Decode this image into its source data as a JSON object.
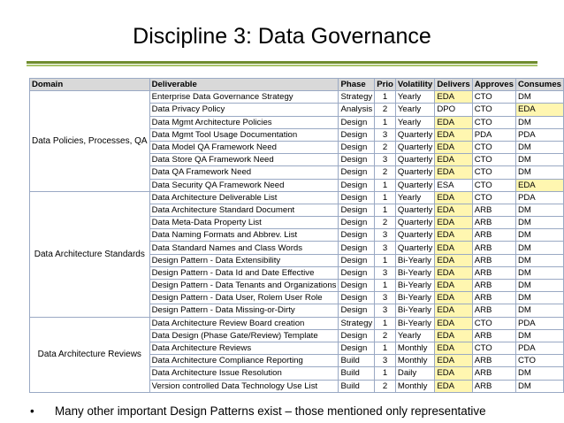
{
  "slide": {
    "title": "Discipline 3: Data Governance",
    "bullet_marker": "•",
    "bullet": "Many other important Design Patterns exist – those mentioned only representative"
  },
  "colors": {
    "rule_dark": "#6f8c2e",
    "rule_light": "#a9c56a",
    "header_bg": "#d9d9d9",
    "highlight": "#fff6b0",
    "grid": "#9aa9c4"
  },
  "table": {
    "headers": [
      "Domain",
      "Deliverable",
      "Phase",
      "Prio",
      "Volatility",
      "Delivers",
      "Approves",
      "Consumes"
    ],
    "groups": [
      {
        "domain": "Data Policies, Processes, QA",
        "rows": [
          {
            "deliverable": "Enterprise Data Governance Strategy",
            "phase": "Strategy",
            "prio": "1",
            "volatility": "Yearly",
            "delivers": "EDA",
            "approves": "CTO",
            "consumes": "DM",
            "hl_delivers": true,
            "hl_consumes": false
          },
          {
            "deliverable": "Data Privacy Policy",
            "phase": "Analysis",
            "prio": "2",
            "volatility": "Yearly",
            "delivers": "DPO",
            "approves": "CTO",
            "consumes": "EDA",
            "hl_delivers": false,
            "hl_consumes": true
          },
          {
            "deliverable": "Data Mgmt Architecture Policies",
            "phase": "Design",
            "prio": "1",
            "volatility": "Yearly",
            "delivers": "EDA",
            "approves": "CTO",
            "consumes": "DM",
            "hl_delivers": true,
            "hl_consumes": false
          },
          {
            "deliverable": "Data Mgmt Tool Usage Documentation",
            "phase": "Design",
            "prio": "3",
            "volatility": "Quarterly",
            "delivers": "EDA",
            "approves": "PDA",
            "consumes": "PDA",
            "hl_delivers": true,
            "hl_consumes": false
          },
          {
            "deliverable": "Data Model QA Framework Need",
            "phase": "Design",
            "prio": "2",
            "volatility": "Quarterly",
            "delivers": "EDA",
            "approves": "CTO",
            "consumes": "DM",
            "hl_delivers": true,
            "hl_consumes": false
          },
          {
            "deliverable": "Data Store QA Framework Need",
            "phase": "Design",
            "prio": "3",
            "volatility": "Quarterly",
            "delivers": "EDA",
            "approves": "CTO",
            "consumes": "DM",
            "hl_delivers": true,
            "hl_consumes": false
          },
          {
            "deliverable": "Data QA Framework Need",
            "phase": "Design",
            "prio": "2",
            "volatility": "Quarterly",
            "delivers": "EDA",
            "approves": "CTO",
            "consumes": "DM",
            "hl_delivers": true,
            "hl_consumes": false
          },
          {
            "deliverable": "Data Security QA Framework Need",
            "phase": "Design",
            "prio": "1",
            "volatility": "Quarterly",
            "delivers": "ESA",
            "approves": "CTO",
            "consumes": "EDA",
            "hl_delivers": false,
            "hl_consumes": true
          }
        ]
      },
      {
        "domain": "Data Architecture Standards",
        "rows": [
          {
            "deliverable": "Data Architecture Deliverable List",
            "phase": "Design",
            "prio": "1",
            "volatility": "Yearly",
            "delivers": "EDA",
            "approves": "CTO",
            "consumes": "PDA",
            "hl_delivers": true,
            "hl_consumes": false
          },
          {
            "deliverable": "Data Architecture Standard Document",
            "phase": "Design",
            "prio": "1",
            "volatility": "Quarterly",
            "delivers": "EDA",
            "approves": "ARB",
            "consumes": "DM",
            "hl_delivers": true,
            "hl_consumes": false
          },
          {
            "deliverable": "Data Meta-Data Property List",
            "phase": "Design",
            "prio": "2",
            "volatility": "Quarterly",
            "delivers": "EDA",
            "approves": "ARB",
            "consumes": "DM",
            "hl_delivers": true,
            "hl_consumes": false
          },
          {
            "deliverable": "Data Naming Formats and Abbrev. List",
            "phase": "Design",
            "prio": "3",
            "volatility": "Quarterly",
            "delivers": "EDA",
            "approves": "ARB",
            "consumes": "DM",
            "hl_delivers": true,
            "hl_consumes": false
          },
          {
            "deliverable": "Data Standard Names and Class Words",
            "phase": "Design",
            "prio": "3",
            "volatility": "Quarterly",
            "delivers": "EDA",
            "approves": "ARB",
            "consumes": "DM",
            "hl_delivers": true,
            "hl_consumes": false
          },
          {
            "deliverable": "Design Pattern - Data Extensibility",
            "phase": "Design",
            "prio": "1",
            "volatility": "Bi-Yearly",
            "delivers": "EDA",
            "approves": "ARB",
            "consumes": "DM",
            "hl_delivers": true,
            "hl_consumes": false
          },
          {
            "deliverable": "Design Pattern - Data Id and Date Effective",
            "phase": "Design",
            "prio": "3",
            "volatility": "Bi-Yearly",
            "delivers": "EDA",
            "approves": "ARB",
            "consumes": "DM",
            "hl_delivers": true,
            "hl_consumes": false
          },
          {
            "deliverable": "Design Pattern - Data Tenants and Organizations",
            "phase": "Design",
            "prio": "1",
            "volatility": "Bi-Yearly",
            "delivers": "EDA",
            "approves": "ARB",
            "consumes": "DM",
            "hl_delivers": true,
            "hl_consumes": false
          },
          {
            "deliverable": "Design Pattern - Data User, Rolem User Role",
            "phase": "Design",
            "prio": "3",
            "volatility": "Bi-Yearly",
            "delivers": "EDA",
            "approves": "ARB",
            "consumes": "DM",
            "hl_delivers": true,
            "hl_consumes": false
          },
          {
            "deliverable": "Design Pattern - Data Missing-or-Dirty",
            "phase": "Design",
            "prio": "3",
            "volatility": "Bi-Yearly",
            "delivers": "EDA",
            "approves": "ARB",
            "consumes": "DM",
            "hl_delivers": true,
            "hl_consumes": false
          }
        ]
      },
      {
        "domain": "Data Architecture Reviews",
        "rows": [
          {
            "deliverable": "Data Architecture Review Board creation",
            "phase": "Strategy",
            "prio": "1",
            "volatility": "Bi-Yearly",
            "delivers": "EDA",
            "approves": "CTO",
            "consumes": "PDA",
            "hl_delivers": true,
            "hl_consumes": false
          },
          {
            "deliverable": "Data Design (Phase Gate/Review) Template",
            "phase": "Design",
            "prio": "2",
            "volatility": "Yearly",
            "delivers": "EDA",
            "approves": "ARB",
            "consumes": "DM",
            "hl_delivers": true,
            "hl_consumes": false
          },
          {
            "deliverable": "Data Architecture Reviews",
            "phase": "Design",
            "prio": "1",
            "volatility": "Monthly",
            "delivers": "EDA",
            "approves": "CTO",
            "consumes": "PDA",
            "hl_delivers": true,
            "hl_consumes": false
          },
          {
            "deliverable": "Data Architecture Compliance Reporting",
            "phase": "Build",
            "prio": "3",
            "volatility": "Monthly",
            "delivers": "EDA",
            "approves": "ARB",
            "consumes": "CTO",
            "hl_delivers": true,
            "hl_consumes": false
          },
          {
            "deliverable": "Data Architecture Issue Resolution",
            "phase": "Build",
            "prio": "1",
            "volatility": "Daily",
            "delivers": "EDA",
            "approves": "ARB",
            "consumes": "DM",
            "hl_delivers": true,
            "hl_consumes": false
          },
          {
            "deliverable": "Version controlled Data Technology Use List",
            "phase": "Build",
            "prio": "2",
            "volatility": "Monthly",
            "delivers": "EDA",
            "approves": "ARB",
            "consumes": "DM",
            "hl_delivers": true,
            "hl_consumes": false
          }
        ]
      }
    ]
  }
}
